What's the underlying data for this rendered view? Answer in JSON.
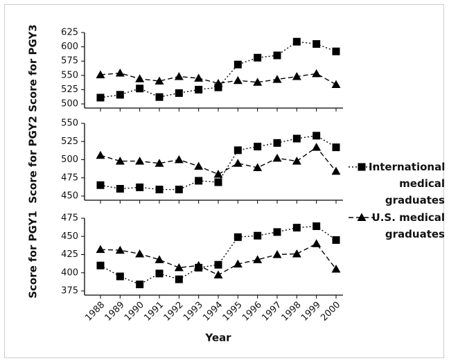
{
  "chart_data": [
    {
      "type": "line",
      "ylabel": "Score for PGY3",
      "x": [
        1988,
        1989,
        1990,
        1991,
        1992,
        1993,
        1994,
        1995,
        1996,
        1997,
        1998,
        1999,
        2000
      ],
      "series": [
        {
          "name": "International medical graduates",
          "color": "#000000",
          "marker": "square",
          "line_style": "dotted",
          "values": [
            511,
            516,
            527,
            512,
            519,
            525,
            529,
            569,
            581,
            585,
            609,
            605,
            592
          ]
        },
        {
          "name": "U.S. medical graduates",
          "color": "#000000",
          "marker": "triangle",
          "line_style": "dashed",
          "values": [
            551,
            554,
            544,
            540,
            548,
            545,
            536,
            541,
            538,
            543,
            548,
            553,
            534
          ]
        }
      ],
      "ylim": [
        500,
        625
      ],
      "yticks": [
        500,
        525,
        550,
        575,
        600,
        625
      ]
    },
    {
      "type": "line",
      "ylabel": "Score for PGY2",
      "x": [
        1988,
        1989,
        1990,
        1991,
        1992,
        1993,
        1994,
        1995,
        1996,
        1997,
        1998,
        1999,
        2000
      ],
      "series": [
        {
          "name": "International medical graduates",
          "color": "#000000",
          "marker": "square",
          "line_style": "dotted",
          "values": [
            465,
            460,
            462,
            459,
            459,
            471,
            469,
            513,
            518,
            523,
            529,
            533,
            517
          ]
        },
        {
          "name": "U.S. medical graduates",
          "color": "#000000",
          "marker": "triangle",
          "line_style": "dashed",
          "values": [
            506,
            498,
            498,
            495,
            500,
            491,
            480,
            495,
            489,
            502,
            498,
            517,
            484
          ]
        }
      ],
      "ylim": [
        450,
        550
      ],
      "yticks": [
        450,
        475,
        500,
        525,
        550
      ]
    },
    {
      "type": "line",
      "ylabel": "Score for PGY1",
      "xlabel": "Year",
      "x": [
        1988,
        1989,
        1990,
        1991,
        1992,
        1993,
        1994,
        1995,
        1996,
        1997,
        1998,
        1999,
        2000
      ],
      "series": [
        {
          "name": "International medical graduates",
          "color": "#000000",
          "marker": "square",
          "line_style": "dotted",
          "values": [
            410,
            395,
            384,
            399,
            391,
            407,
            411,
            449,
            451,
            456,
            462,
            464,
            445
          ]
        },
        {
          "name": "U.S. medical graduates",
          "color": "#000000",
          "marker": "triangle",
          "line_style": "dashed",
          "values": [
            432,
            431,
            426,
            418,
            407,
            410,
            397,
            412,
            418,
            425,
            426,
            440,
            405
          ]
        }
      ],
      "ylim": [
        375,
        475
      ],
      "yticks": [
        375,
        400,
        425,
        450,
        475
      ]
    }
  ]
}
